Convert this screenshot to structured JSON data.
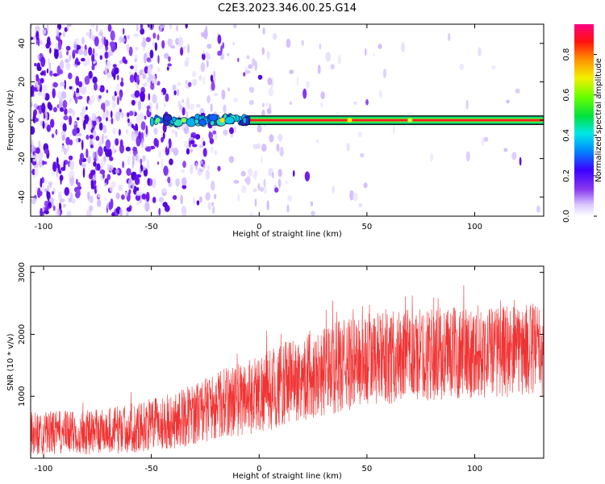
{
  "title": "C2E3.2023.346.00.25.G14",
  "chart_data": [
    {
      "type": "heatmap",
      "xlabel": "Height of straight line (km)",
      "ylabel": "Frequency (Hz)",
      "xlim": [
        -106,
        132
      ],
      "ylim": [
        -50,
        50
      ],
      "xticks": [
        -100,
        -50,
        0,
        50,
        100
      ],
      "yticks": [
        -40,
        -20,
        0,
        20,
        40
      ],
      "signal_band": {
        "frequency_hz": 0,
        "x_start_km": -50,
        "x_end_km": 132
      },
      "colorbar": {
        "label": "Normalized spectral amplitude",
        "range": [
          0,
          0.95
        ],
        "ticks": [
          0.0,
          0.2,
          0.4,
          0.6,
          0.8
        ]
      },
      "grid": false
    },
    {
      "type": "line",
      "xlabel": "Height of straight line (km)",
      "ylabel": "SNR (10 * v/v)",
      "xlim": [
        -106,
        132
      ],
      "ylim": [
        0,
        3100
      ],
      "xticks": [
        -100,
        -50,
        0,
        50,
        100
      ],
      "yticks": [
        1000,
        2000,
        3000
      ],
      "color": "#f03434",
      "trend": [
        {
          "x": -106,
          "mean": 400,
          "amp": 350
        },
        {
          "x": -80,
          "mean": 420,
          "amp": 360
        },
        {
          "x": -60,
          "mean": 480,
          "amp": 400
        },
        {
          "x": -40,
          "mean": 600,
          "amp": 450
        },
        {
          "x": -20,
          "mean": 850,
          "amp": 550
        },
        {
          "x": 0,
          "mean": 1050,
          "amp": 650
        },
        {
          "x": 20,
          "mean": 1300,
          "amp": 700
        },
        {
          "x": 40,
          "mean": 1500,
          "amp": 750
        },
        {
          "x": 60,
          "mean": 1620,
          "amp": 750
        },
        {
          "x": 80,
          "mean": 1680,
          "amp": 750
        },
        {
          "x": 100,
          "mean": 1720,
          "amp": 750
        },
        {
          "x": 132,
          "mean": 1750,
          "amp": 750
        }
      ],
      "grid": false
    }
  ]
}
